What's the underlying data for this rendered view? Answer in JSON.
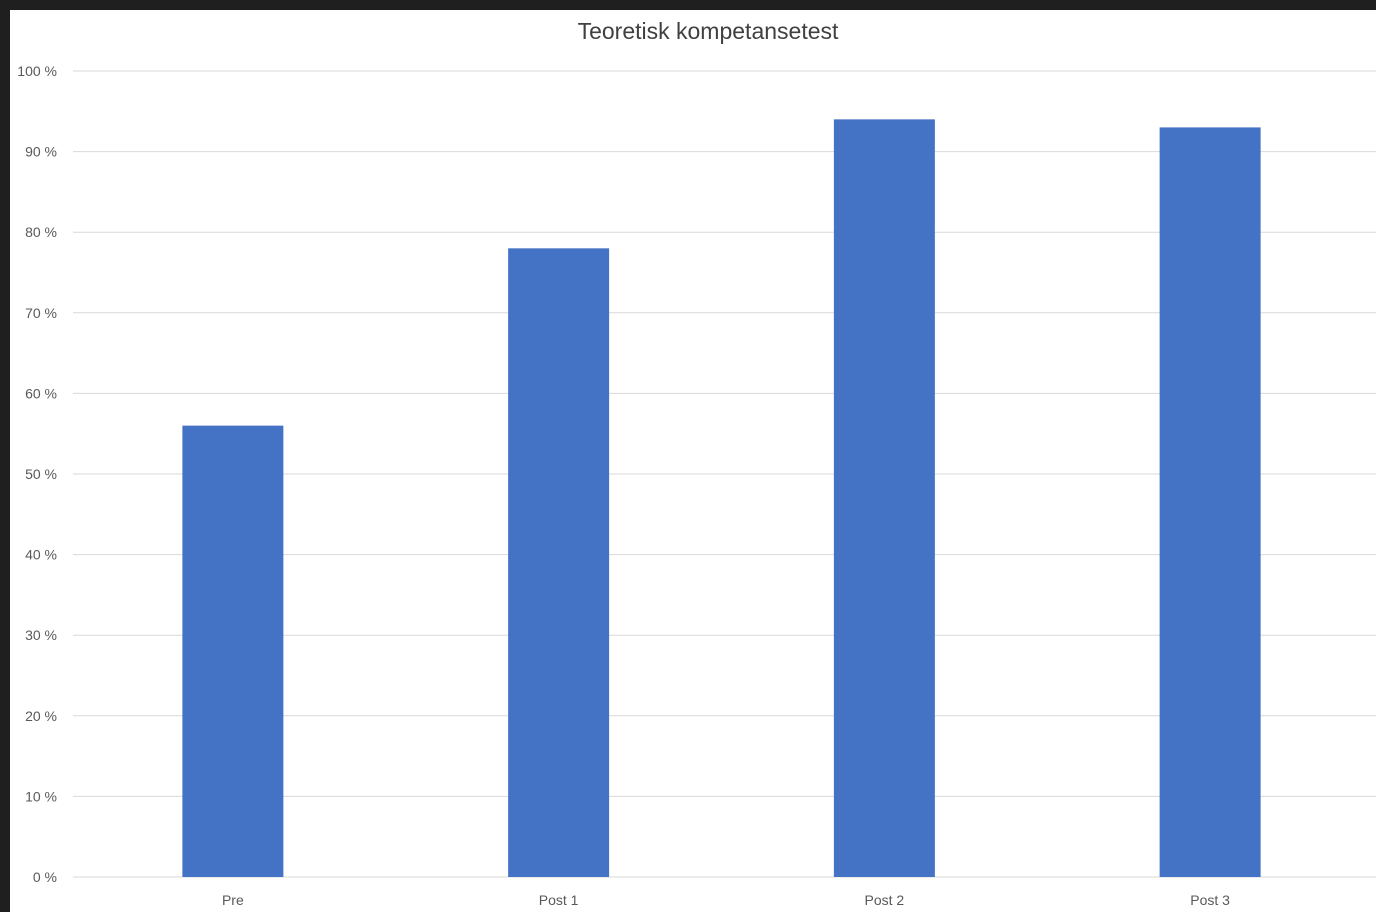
{
  "chart_data": {
    "type": "bar",
    "title": "Teoretisk kompetansetest",
    "categories": [
      "Pre",
      "Post 1",
      "Post 2",
      "Post 3"
    ],
    "values": [
      56,
      78,
      94,
      93
    ],
    "ylim": [
      0,
      100
    ],
    "yticks": [
      0,
      10,
      20,
      30,
      40,
      50,
      60,
      70,
      80,
      90,
      100
    ],
    "ytick_suffix": " %",
    "xlabel": "",
    "ylabel": "",
    "grid": true,
    "legend": "none",
    "bar_color": "#4472c4"
  }
}
